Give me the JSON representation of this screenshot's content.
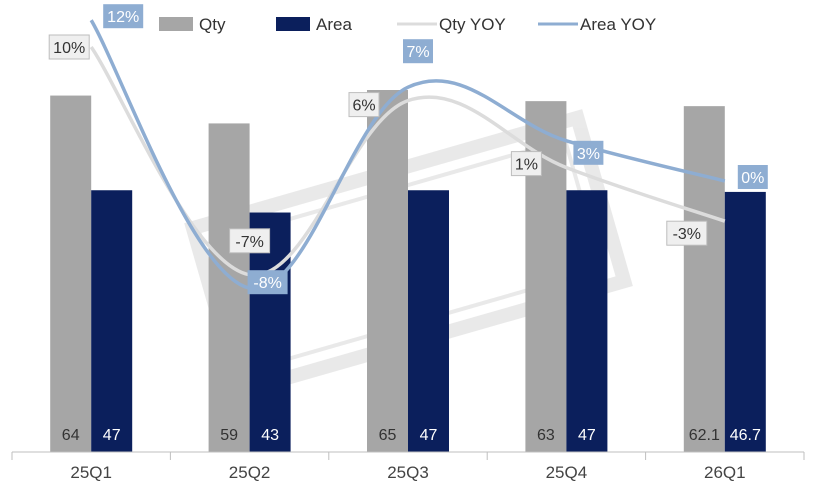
{
  "chart_data": {
    "type": "bar",
    "categories": [
      "25Q1",
      "25Q2",
      "25Q3",
      "25Q4",
      "26Q1"
    ],
    "legend_position": "top-center",
    "grid": false,
    "bar_axis_range": [
      0,
      70
    ],
    "yoy_axis_range": [
      -10,
      15
    ],
    "series": [
      {
        "name": "Qty",
        "kind": "bar",
        "values": [
          64,
          59,
          65,
          63,
          62.1
        ],
        "value_labels": [
          "64",
          "59",
          "65",
          "63",
          "62.1"
        ],
        "color": "#a6a6a6"
      },
      {
        "name": "Area",
        "kind": "bar",
        "values": [
          47,
          43,
          47,
          47,
          46.7
        ],
        "value_labels": [
          "47",
          "43",
          "47",
          "47",
          "46.7"
        ],
        "color": "#0b1f5c"
      },
      {
        "name": "Qty YOY",
        "kind": "line",
        "values": [
          10,
          -7,
          6,
          1,
          -3
        ],
        "value_labels": [
          "10%",
          "-7%",
          "6%",
          "1%",
          "-3%"
        ],
        "color": "#dcdcdc"
      },
      {
        "name": "Area YOY",
        "kind": "line",
        "values": [
          12,
          -8,
          7,
          3,
          0
        ],
        "value_labels": [
          "12%",
          "-8%",
          "7%",
          "3%",
          "0%"
        ],
        "color": "#8eadd2"
      }
    ]
  }
}
